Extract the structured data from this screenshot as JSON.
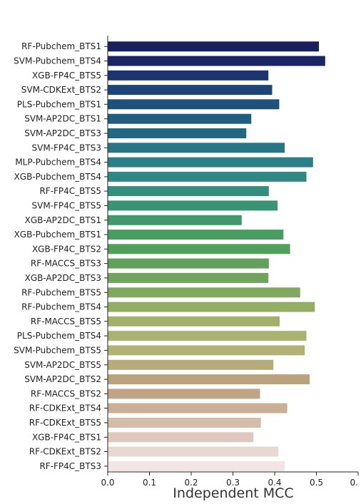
{
  "chart_data": {
    "type": "bar",
    "orientation": "horizontal",
    "title": "",
    "xlabel": "Independent MCC",
    "ylabel": "",
    "xlim": [
      0,
      0.6
    ],
    "xticks": [
      "0.0",
      "0.1",
      "0.2",
      "0.3",
      "0.4",
      "0.5",
      "0."
    ],
    "grid": false,
    "categories": [
      "RF-Pubchem_BTS1",
      "SVM-Pubchem_BTS4",
      "XGB-FP4C_BTS5",
      "SVM-CDKExt_BTS2",
      "PLS-Pubchem_BTS1",
      "SVM-AP2DC_BTS1",
      "SVM-AP2DC_BTS3",
      "SVM-FP4C_BTS3",
      "MLP-Pubchem_BTS4",
      "XGB-Pubchem_BTS4",
      "RF-FP4C_BTS5",
      "SVM-FP4C_BTS5",
      "XGB-AP2DC_BTS1",
      "XGB-Pubchem_BTS1",
      "XGB-FP4C_BTS2",
      "RF-MACCS_BTS3",
      "XGB-AP2DC_BTS3",
      "RF-Pubchem_BTS5",
      "RF-Pubchem_BTS4",
      "RF-MACCS_BTS5",
      "PLS-Pubchem_BTS4",
      "SVM-Pubchem_BTS5",
      "SVM-AP2DC_BTS5",
      "SVM-AP2DC_BTS2",
      "RF-MACCS_BTS2",
      "RF-CDKExt_BTS4",
      "RF-CDKExt_BTS5",
      "XGB-FP4C_BTS1",
      "RF-CDKExt_BTS2",
      "RF-FP4C_BTS3"
    ],
    "values": [
      0.506,
      0.521,
      0.385,
      0.394,
      0.411,
      0.344,
      0.332,
      0.424,
      0.492,
      0.476,
      0.386,
      0.407,
      0.321,
      0.421,
      0.437,
      0.386,
      0.385,
      0.461,
      0.496,
      0.412,
      0.476,
      0.472,
      0.397,
      0.484,
      0.365,
      0.43,
      0.367,
      0.349,
      0.409,
      0.424
    ],
    "colors": [
      "#1a1f5e",
      "#1b2566",
      "#1c3470",
      "#1d4577",
      "#1e527d",
      "#205d80",
      "#236883",
      "#287585",
      "#2c7f86",
      "#2f8883",
      "#338f7c",
      "#389474",
      "#3f996b",
      "#489c61",
      "#529e5b",
      "#629f5b",
      "#72a35d",
      "#82a85f",
      "#92ae64",
      "#a1b16a",
      "#aab371",
      "#b2b277",
      "#b6ab7b",
      "#baa27d",
      "#c1a386",
      "#caae96",
      "#d3bca9",
      "#dec8bd",
      "#e8d8d2",
      "#f1e6e3"
    ]
  }
}
